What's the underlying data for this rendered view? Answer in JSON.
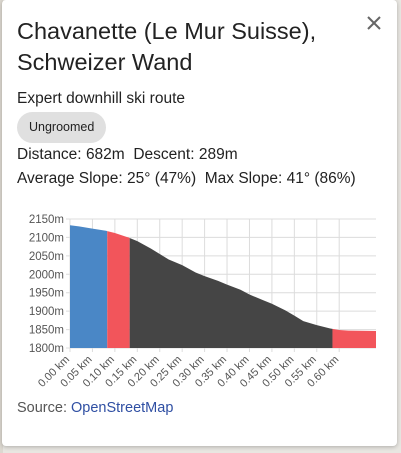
{
  "popup": {
    "title_line1": "Chavanette (Le Mur Suisse),",
    "title_line2": "Schweizer Wand",
    "subtitle": "Expert downhill ski route",
    "badge": "Ungroomed",
    "stats": {
      "distance_label": "Distance:",
      "distance_value": "682m",
      "descent_label": "Descent:",
      "descent_value": "289m",
      "avg_slope_label": "Average Slope:",
      "avg_slope_value": "25° (47%)",
      "max_slope_label": "Max Slope:",
      "max_slope_value": "41° (86%)"
    },
    "source_label": "Source:",
    "source_link": "OpenStreetMap"
  },
  "colors": {
    "blue": "#4a87c6",
    "red": "#f2555b",
    "dark": "#454545"
  },
  "chart_data": {
    "type": "area",
    "xlabel": "",
    "ylabel": "",
    "y_ticks": [
      "1800m",
      "1850m",
      "1900m",
      "1950m",
      "2000m",
      "2050m",
      "2100m",
      "2150m"
    ],
    "x_ticks": [
      "0.00 km",
      "0.05 km",
      "0.10 km",
      "0.15 km",
      "0.20 km",
      "0.25 km",
      "0.30 km",
      "0.35 km",
      "0.40 km",
      "0.45 km",
      "0.50 km",
      "0.55 km",
      "0.60 km"
    ],
    "ylim": [
      1800,
      2150
    ],
    "xlim": [
      0,
      0.682
    ],
    "grid": true,
    "points": [
      [
        0.0,
        2133
      ],
      [
        0.02,
        2130
      ],
      [
        0.05,
        2124
      ],
      [
        0.08,
        2118
      ],
      [
        0.1,
        2112
      ],
      [
        0.13,
        2100
      ],
      [
        0.15,
        2090
      ],
      [
        0.18,
        2070
      ],
      [
        0.2,
        2055
      ],
      [
        0.22,
        2040
      ],
      [
        0.25,
        2025
      ],
      [
        0.28,
        2005
      ],
      [
        0.3,
        1995
      ],
      [
        0.33,
        1982
      ],
      [
        0.35,
        1972
      ],
      [
        0.38,
        1958
      ],
      [
        0.4,
        1945
      ],
      [
        0.43,
        1930
      ],
      [
        0.45,
        1920
      ],
      [
        0.48,
        1902
      ],
      [
        0.5,
        1888
      ],
      [
        0.52,
        1873
      ],
      [
        0.55,
        1862
      ],
      [
        0.58,
        1853
      ],
      [
        0.6,
        1849
      ],
      [
        0.62,
        1847
      ],
      [
        0.682,
        1846
      ]
    ],
    "segments": [
      {
        "from": 0.0,
        "to": 0.083,
        "color": "blue"
      },
      {
        "from": 0.083,
        "to": 0.133,
        "color": "red"
      },
      {
        "from": 0.133,
        "to": 0.585,
        "color": "dark"
      },
      {
        "from": 0.585,
        "to": 0.682,
        "color": "red"
      }
    ]
  }
}
